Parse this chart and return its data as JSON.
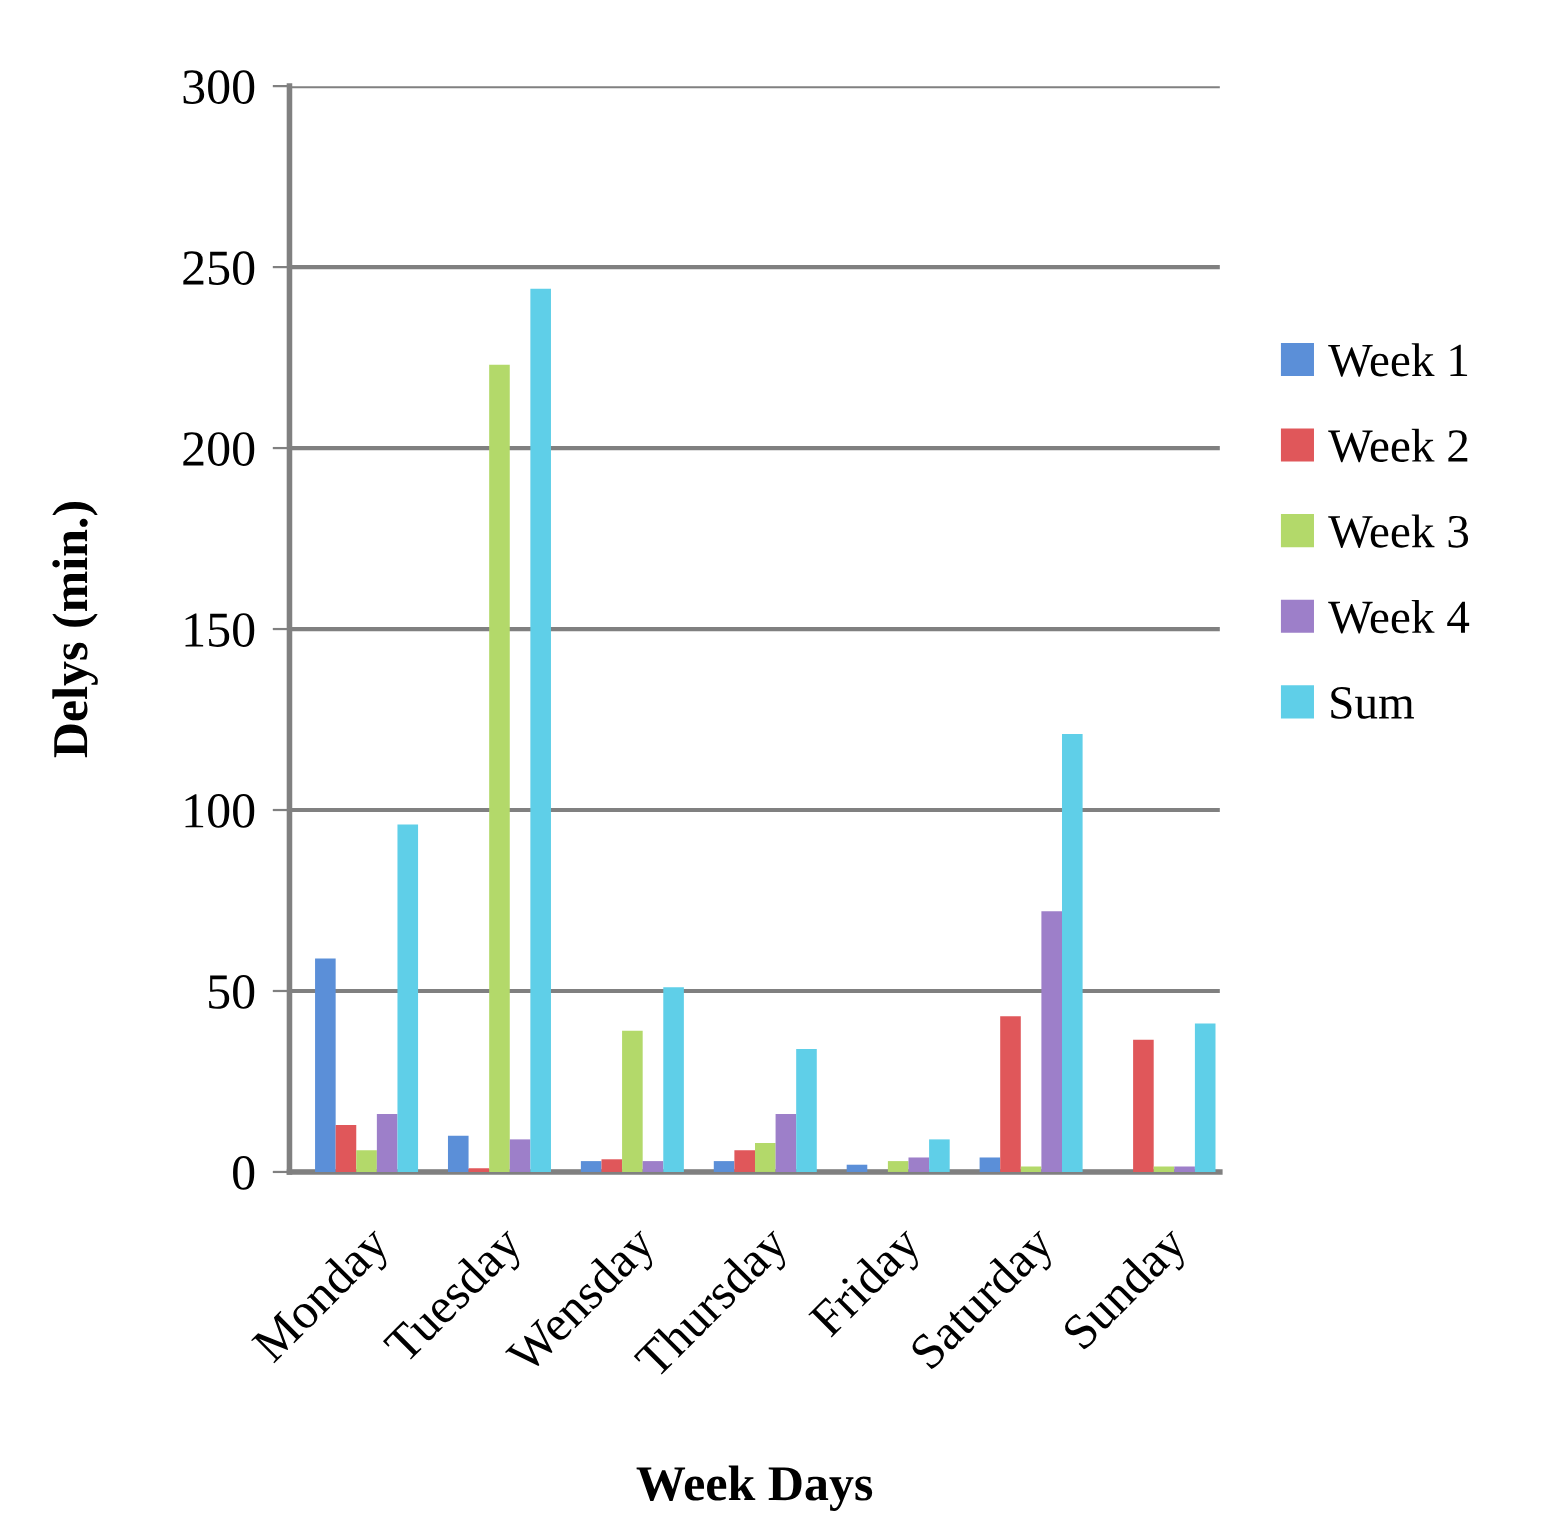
{
  "chart_data": {
    "type": "bar",
    "xlabel": "Week Days",
    "ylabel": "Delys (min.)",
    "categories": [
      "Monday",
      "Tuesday",
      "Wensday",
      "Thursday",
      "Friday",
      "Saturday",
      "Sunday"
    ],
    "series": [
      {
        "name": "Week 1",
        "color": "#5b8fd8",
        "values": [
          59,
          10,
          3,
          3,
          2,
          4,
          0
        ]
      },
      {
        "name": "Week 2",
        "color": "#e0575a",
        "values": [
          13,
          1,
          3.5,
          6,
          0,
          43,
          36.5
        ]
      },
      {
        "name": "Week 3",
        "color": "#b3d96a",
        "values": [
          6,
          223,
          39,
          8,
          3,
          1.5,
          1.5
        ]
      },
      {
        "name": "Week 4",
        "color": "#9d7fc9",
        "values": [
          16,
          9,
          3,
          16,
          4,
          72,
          1.5
        ]
      },
      {
        "name": "Sum",
        "color": "#5fcfe8",
        "values": [
          96,
          244,
          51,
          34,
          9,
          121,
          41
        ]
      }
    ],
    "ylim": [
      0,
      300
    ],
    "yticks": [
      0,
      50,
      100,
      150,
      200,
      250,
      300
    ],
    "grid": "y",
    "legend": "right"
  }
}
